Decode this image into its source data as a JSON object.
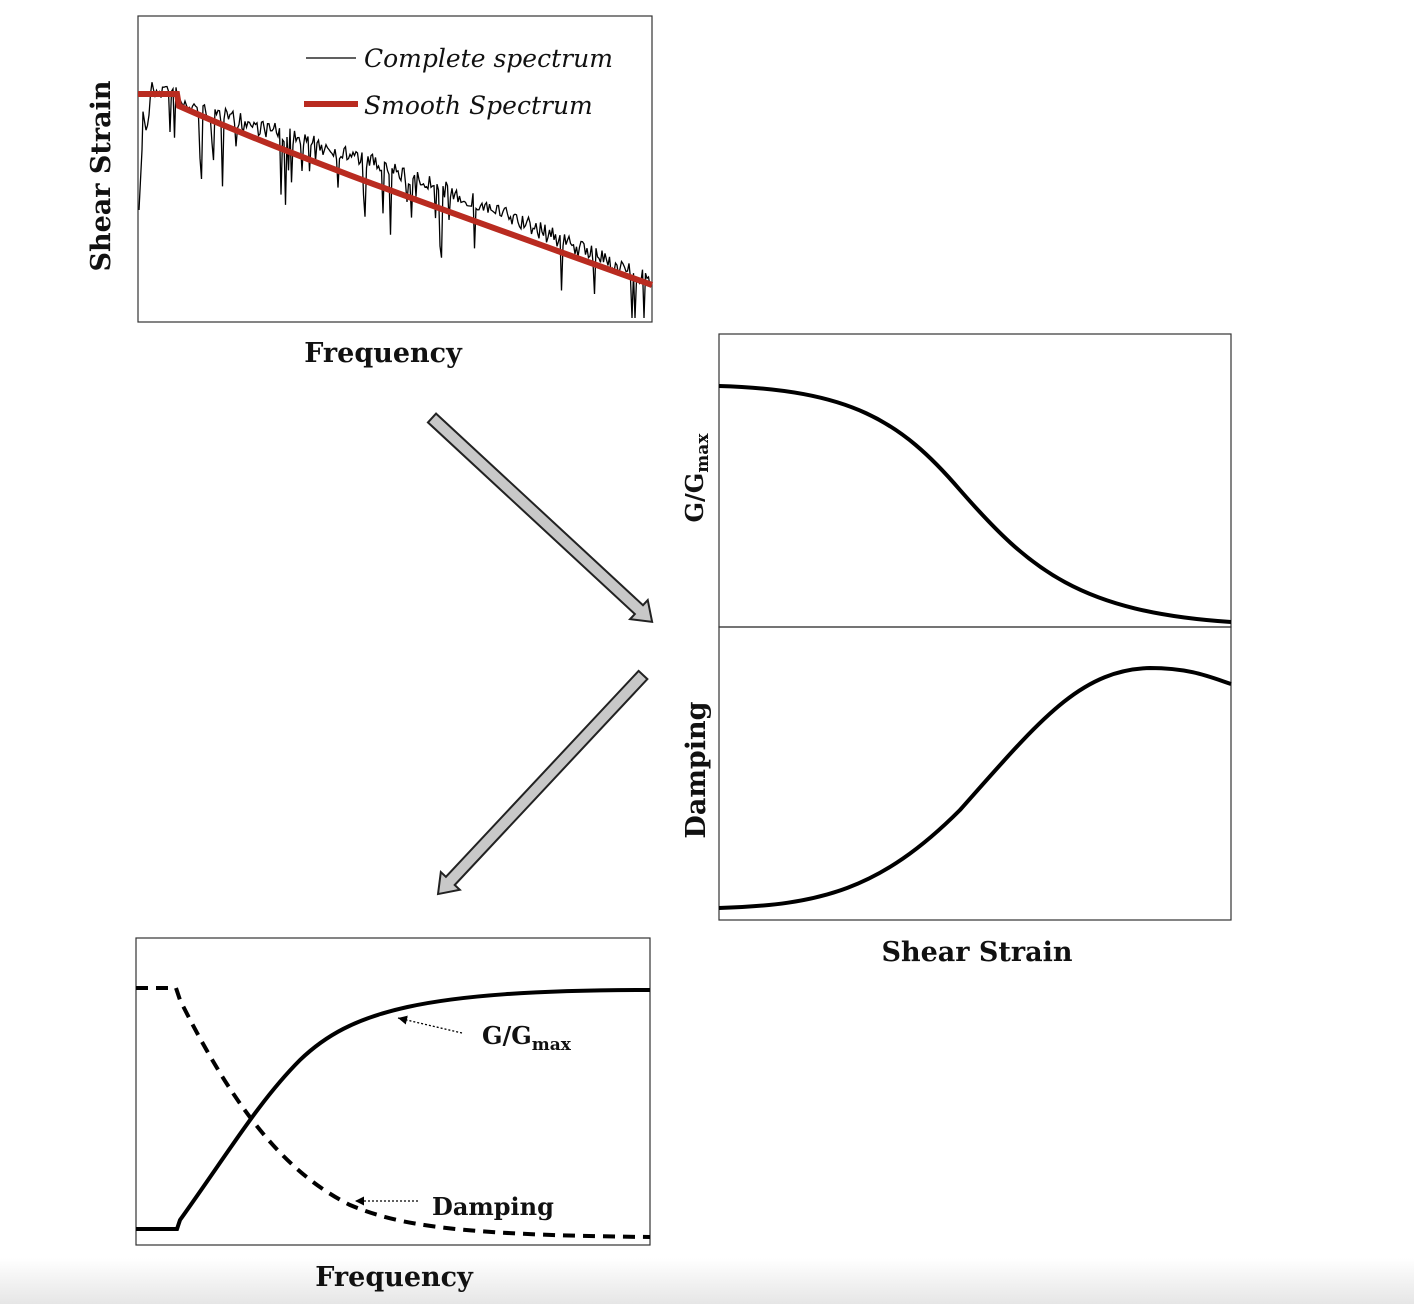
{
  "panels": [
    {
      "y_label": "Shear Strain",
      "x_label": "Frequency",
      "legend": [
        "Complete spectrum",
        "Smooth Spectrum"
      ]
    },
    {
      "y_label": {
        "main": "G/G",
        "sub": "max"
      }
    },
    {
      "y_label": "Damping",
      "x_label": "Shear Strain"
    },
    {
      "x_label": "Frequency",
      "annotations": [
        {
          "main": "G/G",
          "sub": "max"
        },
        "Damping"
      ]
    }
  ]
}
